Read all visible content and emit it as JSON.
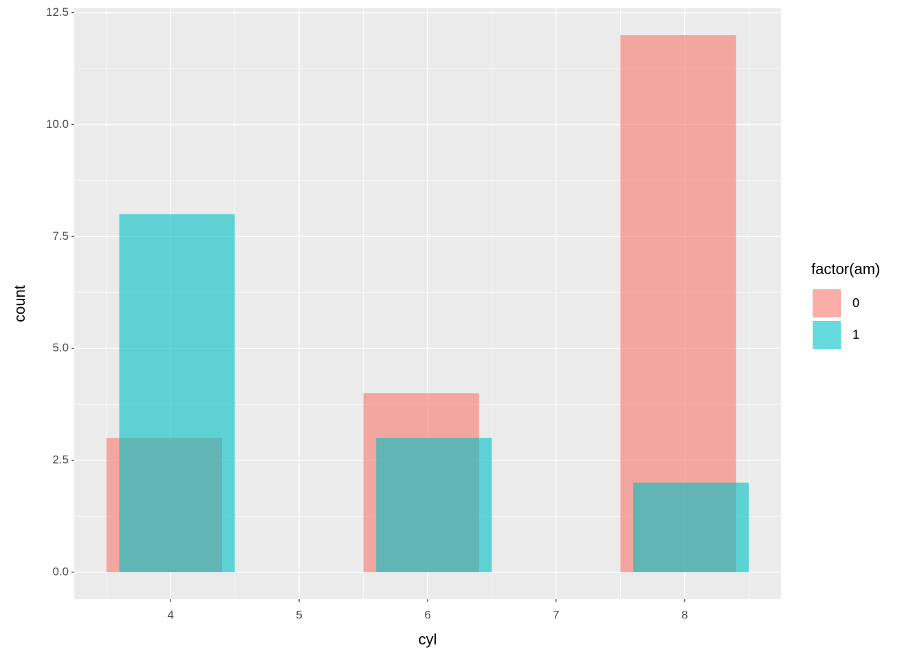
{
  "chart_data": {
    "type": "bar",
    "x_label": "cyl",
    "y_label": "count",
    "x": [
      4,
      6,
      8
    ],
    "series": [
      {
        "name": "0",
        "color": "#F8766D",
        "values": [
          3,
          4,
          12
        ]
      },
      {
        "name": "1",
        "color": "#00BFC4",
        "values": [
          8,
          3,
          2
        ]
      }
    ],
    "legend_title": "factor(am)",
    "xlim": [
      3.25,
      8.75
    ],
    "xticks": [
      4,
      5,
      6,
      7,
      8
    ],
    "ylim": [
      -0.6,
      12.6
    ],
    "yticks": [
      {
        "value": 0,
        "label": "0.0"
      },
      {
        "value": 2.5,
        "label": "2.5"
      },
      {
        "value": 5,
        "label": "5.0"
      },
      {
        "value": 7.5,
        "label": "7.5"
      },
      {
        "value": 10,
        "label": "10.0"
      },
      {
        "value": 12.5,
        "label": "12.5"
      }
    ],
    "grid": true,
    "legend": "right"
  }
}
